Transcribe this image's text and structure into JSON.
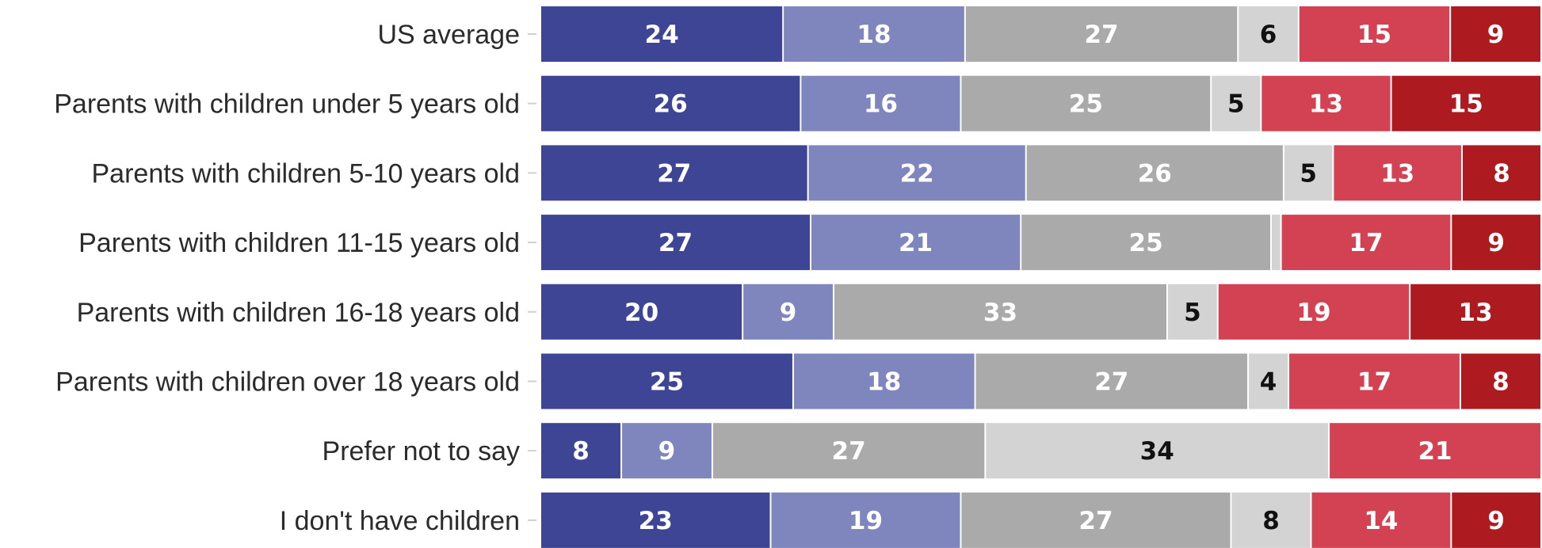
{
  "chart_data": {
    "type": "bar",
    "orientation": "horizontal",
    "stacked": true,
    "categories": [
      "US average",
      "Parents with children under 5 years old",
      "Parents with children 5-10 years old",
      "Parents with children 11-15 years old",
      "Parents with children 16-18 years old",
      "Parents with children over 18 years old",
      "Prefer not to say",
      "I don't have children"
    ],
    "series": [
      {
        "color": "#3d4594",
        "label_color": "#ffffff",
        "values": [
          24,
          26,
          27,
          27,
          20,
          25,
          8,
          23
        ]
      },
      {
        "color": "#7e86bd",
        "label_color": "#ffffff",
        "values": [
          18,
          16,
          22,
          21,
          9,
          18,
          9,
          19
        ]
      },
      {
        "color": "#aaaaaa",
        "label_color": "#ffffff",
        "values": [
          27,
          25,
          26,
          25,
          33,
          27,
          27,
          27
        ]
      },
      {
        "color": "#d3d3d3",
        "label_color": "#111111",
        "values": [
          6,
          5,
          5,
          1,
          5,
          4,
          34,
          8
        ]
      },
      {
        "color": "#d34252",
        "label_color": "#ffffff",
        "values": [
          15,
          13,
          13,
          17,
          19,
          17,
          21,
          14
        ]
      },
      {
        "color": "#ad1a1f",
        "label_color": "#ffffff",
        "values": [
          9,
          15,
          8,
          9,
          13,
          8,
          0,
          9
        ]
      }
    ],
    "value_labels": [
      [
        "24",
        "18",
        "27",
        "6",
        "15",
        "9"
      ],
      [
        "26",
        "16",
        "25",
        "5",
        "13",
        "15"
      ],
      [
        "27",
        "22",
        "26",
        "5",
        "13",
        "8"
      ],
      [
        "27",
        "21",
        "25",
        "",
        "17",
        "9"
      ],
      [
        "20",
        "9",
        "33",
        "5",
        "19",
        "13"
      ],
      [
        "25",
        "18",
        "27",
        "4",
        "17",
        "8"
      ],
      [
        "8",
        "9",
        "27",
        "34",
        "21",
        ""
      ],
      [
        "23",
        "19",
        "27",
        "8",
        "14",
        "9"
      ]
    ],
    "xlim": [
      0,
      100
    ],
    "grid": false,
    "legend": "none"
  }
}
